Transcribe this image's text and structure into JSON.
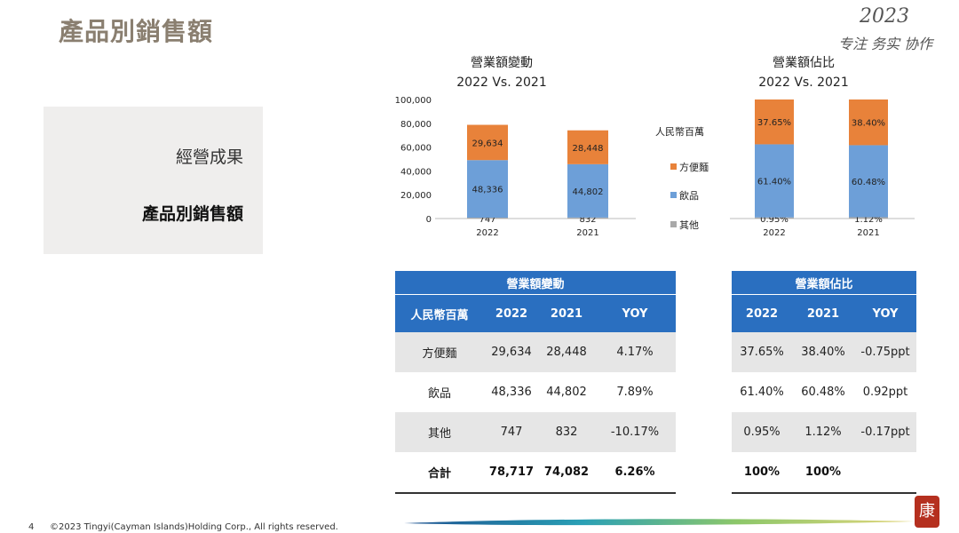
{
  "page": {
    "title": "產品別銷售額",
    "brand_year": "2023",
    "brand_slogan": "专注 务实 协作",
    "seal_char": "康"
  },
  "side_panel": {
    "item_1": "經營成果",
    "item_2": "產品別銷售額"
  },
  "legend": {
    "title": "人民幣百萬",
    "items": [
      {
        "label": "方便麵",
        "color": "#e8823a"
      },
      {
        "label": "飲品",
        "color": "#6d9fd8"
      },
      {
        "label": "其他",
        "color": "#a9a9a9"
      }
    ]
  },
  "chart_data": [
    {
      "type": "bar",
      "stacked": true,
      "title": "營業額變動",
      "subtitle": "2022 Vs. 2021",
      "categories": [
        "2022",
        "2021"
      ],
      "ylim": [
        0,
        100000
      ],
      "yticks": [
        "0",
        "20,000",
        "40,000",
        "60,000",
        "80,000",
        "100,000"
      ],
      "series": [
        {
          "name": "其他",
          "values": [
            747,
            832
          ],
          "labels": [
            "747",
            "832"
          ],
          "color": "#a9a9a9"
        },
        {
          "name": "飲品",
          "values": [
            48336,
            44802
          ],
          "labels": [
            "48,336",
            "44,802"
          ],
          "color": "#6d9fd8"
        },
        {
          "name": "方便麵",
          "values": [
            29634,
            28448
          ],
          "labels": [
            "29,634",
            "28,448"
          ],
          "color": "#e8823a"
        }
      ]
    },
    {
      "type": "bar",
      "stacked": true,
      "title": "營業額佔比",
      "subtitle": "2022 Vs. 2021",
      "categories": [
        "2022",
        "2021"
      ],
      "ylim": [
        0,
        100
      ],
      "series": [
        {
          "name": "其他",
          "values": [
            0.95,
            1.12
          ],
          "labels": [
            "0.95%",
            "1.12%"
          ],
          "color": "#a9a9a9"
        },
        {
          "name": "飲品",
          "values": [
            61.4,
            60.48
          ],
          "labels": [
            "61.40%",
            "60.48%"
          ],
          "color": "#6d9fd8"
        },
        {
          "name": "方便麵",
          "values": [
            37.65,
            38.4
          ],
          "labels": [
            "37.65%",
            "38.40%"
          ],
          "color": "#e8823a"
        }
      ]
    }
  ],
  "table_change": {
    "title": "營業額變動",
    "headers": [
      "人民幣百萬",
      "2022",
      "2021",
      "YOY"
    ],
    "rows": [
      [
        "方便麵",
        "29,634",
        "28,448",
        "4.17%"
      ],
      [
        "飲品",
        "48,336",
        "44,802",
        "7.89%"
      ],
      [
        "其他",
        "747",
        "832",
        "-10.17%"
      ]
    ],
    "total": [
      "合計",
      "78,717",
      "74,082",
      "6.26%"
    ]
  },
  "table_share": {
    "title": "營業額佔比",
    "headers": [
      "2022",
      "2021",
      "YOY"
    ],
    "rows": [
      [
        "37.65%",
        "38.40%",
        "-0.75ppt"
      ],
      [
        "61.40%",
        "60.48%",
        "0.92ppt"
      ],
      [
        "0.95%",
        "1.12%",
        "-0.17ppt"
      ]
    ],
    "total": [
      "100%",
      "100%",
      ""
    ]
  },
  "footer": {
    "page_number": "4",
    "copyright": "©2023 Tingyi(Cayman Islands)Holding Corp., All rights reserved."
  }
}
